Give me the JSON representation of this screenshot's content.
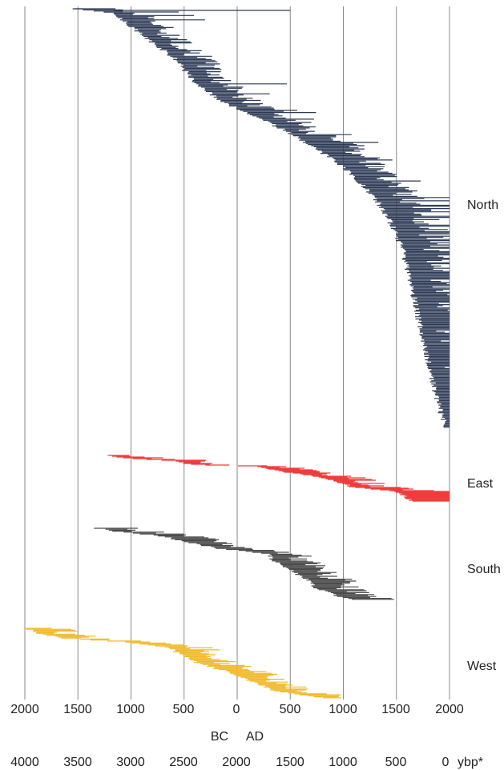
{
  "chart_data": {
    "type": "range-bar",
    "title": "",
    "xlim": [
      -2000,
      2000
    ],
    "grid": true,
    "axis_labels": {
      "year_ticks": [
        "2000",
        "1500",
        "1000",
        "500",
        "0",
        "500",
        "1000",
        "1500",
        "2000"
      ],
      "era_bc": "BC",
      "era_ad": "AD",
      "ybp_ticks": [
        "4000",
        "3500",
        "3000",
        "2500",
        "2000",
        "1500",
        "1000",
        "500",
        "0"
      ],
      "ybp_unit": "ybp*"
    },
    "regions": [
      {
        "name": "North",
        "color": "#2d3a55",
        "count": 380,
        "start_points": [
          [
            0,
            -1550
          ],
          [
            0.01,
            -1160
          ],
          [
            0.04,
            -1020
          ],
          [
            0.08,
            -800
          ],
          [
            0.12,
            -580
          ],
          [
            0.17,
            -420
          ],
          [
            0.22,
            -160
          ],
          [
            0.26,
            200
          ],
          [
            0.3,
            520
          ],
          [
            0.34,
            780
          ],
          [
            0.38,
            1000
          ],
          [
            0.42,
            1180
          ],
          [
            0.46,
            1320
          ],
          [
            0.5,
            1420
          ],
          [
            0.54,
            1500
          ],
          [
            0.58,
            1560
          ],
          [
            0.64,
            1620
          ],
          [
            0.72,
            1690
          ],
          [
            0.8,
            1760
          ],
          [
            0.88,
            1830
          ],
          [
            0.95,
            1900
          ],
          [
            1,
            1960
          ]
        ],
        "outliers": [
          {
            "start": -1550,
            "end": -1450
          },
          {
            "start": -1160,
            "end": 500
          },
          {
            "start": -1100,
            "end": -550
          }
        ]
      },
      {
        "name": "East",
        "color": "#f03c3c",
        "count": 58,
        "start_points": [
          [
            0,
            -1220
          ],
          [
            0.08,
            -960
          ],
          [
            0.12,
            -560
          ],
          [
            0.2,
            -450
          ],
          [
            0.24,
            180
          ],
          [
            0.36,
            430
          ],
          [
            0.44,
            680
          ],
          [
            0.52,
            860
          ],
          [
            0.62,
            1000
          ],
          [
            0.7,
            1100
          ],
          [
            0.78,
            1480
          ],
          [
            1,
            1650
          ]
        ]
      },
      {
        "name": "South",
        "color": "#4b4b4b",
        "count": 75,
        "start_points": [
          [
            0,
            -1320
          ],
          [
            0.05,
            -1130
          ],
          [
            0.1,
            -750
          ],
          [
            0.18,
            -520
          ],
          [
            0.28,
            -200
          ],
          [
            0.33,
            120
          ],
          [
            0.36,
            300
          ],
          [
            0.45,
            330
          ],
          [
            0.58,
            500
          ],
          [
            0.72,
            650
          ],
          [
            0.86,
            760
          ],
          [
            1,
            1050
          ]
        ]
      },
      {
        "name": "West",
        "color": "#f0b92a",
        "count": 72,
        "start_points": [
          [
            0,
            -1980
          ],
          [
            0.06,
            -1900
          ],
          [
            0.1,
            -1780
          ],
          [
            0.14,
            -1640
          ],
          [
            0.2,
            -1050
          ],
          [
            0.28,
            -650
          ],
          [
            0.4,
            -500
          ],
          [
            0.5,
            -380
          ],
          [
            0.62,
            -100
          ],
          [
            0.76,
            120
          ],
          [
            0.9,
            350
          ],
          [
            1,
            780
          ]
        ]
      }
    ]
  }
}
